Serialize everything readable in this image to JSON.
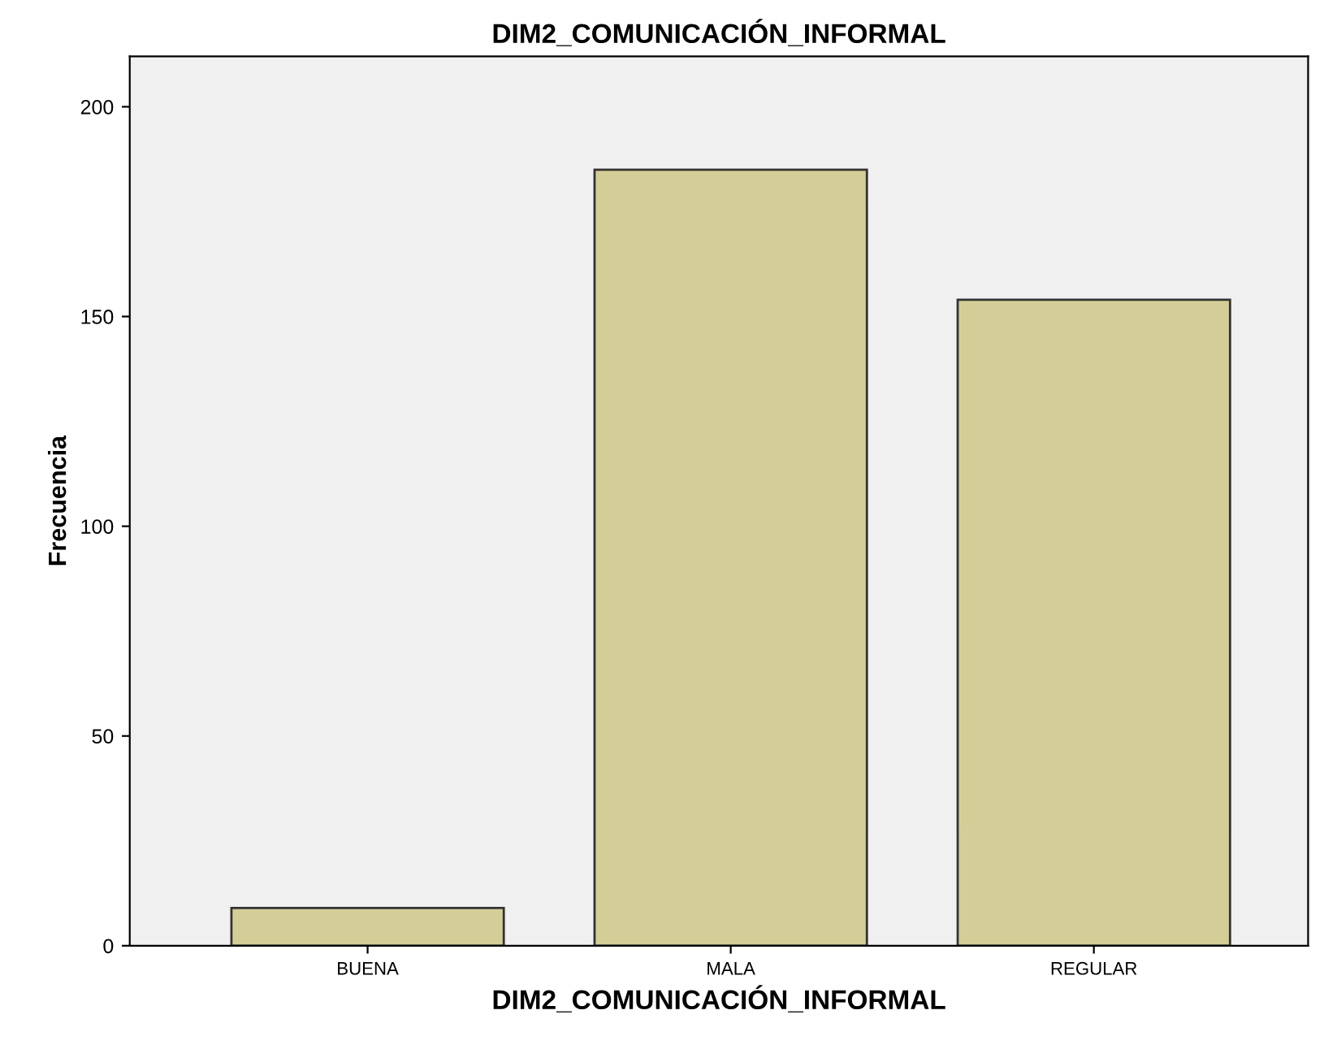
{
  "chart_data": {
    "type": "bar",
    "title": "DIM2_COMUNICACIÓN_INFORMAL",
    "xlabel": "DIM2_COMUNICACIÓN_INFORMAL",
    "ylabel": "Frecuencia",
    "categories": [
      "BUENA",
      "MALA",
      "REGULAR"
    ],
    "values": [
      9,
      185,
      154
    ],
    "color": "#d3ce97",
    "ylim": [
      0,
      212
    ],
    "yticks": [
      0,
      50,
      100,
      150,
      200
    ],
    "grid": false,
    "legend": false
  }
}
